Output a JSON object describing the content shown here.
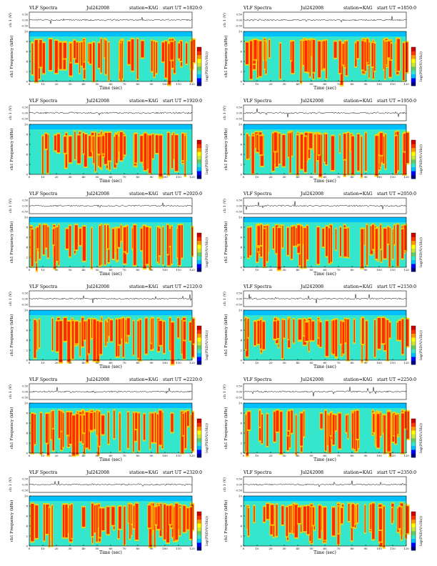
{
  "chart_data": [
    {
      "type": "heatmap",
      "title": "VLF Spectra",
      "date": "Jul242008",
      "station": "station=KAG",
      "start": "start  UT  =1820:0",
      "ylabel_wave": "ch 1 (V)",
      "ylabel_spec": "ch1\nFrequency (kHz)",
      "xlabel": "Time (sec)",
      "colorbar_label": "log(PSD(V/√Hz))",
      "xlim": [
        0,
        120
      ],
      "ylim": [
        0,
        10
      ],
      "wave_ylim": [
        -0.5,
        0.5
      ]
    },
    {
      "type": "heatmap",
      "title": "VLF Spectra",
      "date": "Jul242008",
      "station": "station=KAG",
      "start": "start  UT  =1850:0",
      "ylabel_wave": "ch 1 (V)",
      "ylabel_spec": "ch1\nFrequency (kHz)",
      "xlabel": "Time (sec)",
      "colorbar_label": "log(PSD(V/√Hz))",
      "xlim": [
        0,
        120
      ],
      "ylim": [
        0,
        10
      ],
      "wave_ylim": [
        -0.5,
        0.5
      ]
    },
    {
      "type": "heatmap",
      "title": "VLF Spectra",
      "date": "Jul242008",
      "station": "station=KAG",
      "start": "start  UT  =1920:0",
      "ylabel_wave": "ch 1 (V)",
      "ylabel_spec": "ch1\nFrequency (kHz)",
      "xlabel": "Time (sec)",
      "colorbar_label": "log(PSD(V/√Hz))",
      "xlim": [
        0,
        120
      ],
      "ylim": [
        0,
        10
      ],
      "wave_ylim": [
        -0.5,
        0.5
      ]
    },
    {
      "type": "heatmap",
      "title": "VLF Spectra",
      "date": "Jul242008",
      "station": "station=KAG",
      "start": "start  UT  =1950:0",
      "ylabel_wave": "ch 1 (V)",
      "ylabel_spec": "ch1\nFrequency (kHz)",
      "xlabel": "Time (sec)",
      "colorbar_label": "log(PSD(V/√Hz))",
      "xlim": [
        0,
        120
      ],
      "ylim": [
        0,
        10
      ],
      "wave_ylim": [
        -0.5,
        0.5
      ]
    },
    {
      "type": "heatmap",
      "title": "VLF Spectra",
      "date": "Jul242008",
      "station": "station=KAG",
      "start": "start  UT  =2020:0",
      "ylabel_wave": "ch 1 (V)",
      "ylabel_spec": "ch1\nFrequency (kHz)",
      "xlabel": "Time (sec)",
      "colorbar_label": "log(PSD(V/√Hz))",
      "xlim": [
        0,
        120
      ],
      "ylim": [
        0,
        10
      ],
      "wave_ylim": [
        -0.5,
        0.5
      ]
    },
    {
      "type": "heatmap",
      "title": "VLF Spectra",
      "date": "Jul242008",
      "station": "station=KAG",
      "start": "start  UT  =2050:0",
      "ylabel_wave": "ch 1 (V)",
      "ylabel_spec": "ch1\nFrequency (kHz)",
      "xlabel": "Time (sec)",
      "colorbar_label": "log(PSD(V/√Hz))",
      "xlim": [
        0,
        120
      ],
      "ylim": [
        0,
        10
      ],
      "wave_ylim": [
        -0.5,
        0.5
      ]
    },
    {
      "type": "heatmap",
      "title": "VLF Spectra",
      "date": "Jul242008",
      "station": "station=KAG",
      "start": "start  UT  =2120:0",
      "ylabel_wave": "ch 1 (V)",
      "ylabel_spec": "ch1\nFrequency (kHz)",
      "xlabel": "Time (sec)",
      "colorbar_label": "log(PSD(V/√Hz))",
      "xlim": [
        0,
        120
      ],
      "ylim": [
        0,
        10
      ],
      "wave_ylim": [
        -0.5,
        0.5
      ]
    },
    {
      "type": "heatmap",
      "title": "VLF Spectra",
      "date": "Jul242008",
      "station": "station=KAG",
      "start": "start  UT  =2150:0",
      "ylabel_wave": "ch 1 (V)",
      "ylabel_spec": "ch1\nFrequency (kHz)",
      "xlabel": "Time (sec)",
      "colorbar_label": "log(PSD(V/√Hz))",
      "xlim": [
        0,
        120
      ],
      "ylim": [
        0,
        10
      ],
      "wave_ylim": [
        -0.5,
        0.5
      ]
    },
    {
      "type": "heatmap",
      "title": "VLF Spectra",
      "date": "Jul242008",
      "station": "station=KAG",
      "start": "start  UT  =2220:0",
      "ylabel_wave": "ch 1 (V)",
      "ylabel_spec": "ch1\nFrequency (kHz)",
      "xlabel": "Time (sec)",
      "colorbar_label": "log(PSD(V/√Hz))",
      "xlim": [
        0,
        120
      ],
      "ylim": [
        0,
        10
      ],
      "wave_ylim": [
        -0.5,
        0.5
      ]
    },
    {
      "type": "heatmap",
      "title": "VLF Spectra",
      "date": "Jul242008",
      "station": "station=KAG",
      "start": "start  UT  =2250:0",
      "ylabel_wave": "ch 1 (V)",
      "ylabel_spec": "ch1\nFrequency (kHz)",
      "xlabel": "Time (sec)",
      "colorbar_label": "log(PSD(V/√Hz))",
      "xlim": [
        0,
        120
      ],
      "ylim": [
        0,
        10
      ],
      "wave_ylim": [
        -0.5,
        0.5
      ]
    },
    {
      "type": "heatmap",
      "title": "VLF Spectra",
      "date": "Jul242008",
      "station": "station=KAG",
      "start": "start  UT  =2320:0",
      "ylabel_wave": "ch 1 (V)",
      "ylabel_spec": "ch1\nFrequency (kHz)",
      "xlabel": "Time (sec)",
      "colorbar_label": "log(PSD(V/√Hz))",
      "xlim": [
        0,
        120
      ],
      "ylim": [
        0,
        10
      ],
      "wave_ylim": [
        -0.5,
        0.5
      ]
    },
    {
      "type": "heatmap",
      "title": "VLF Spectra",
      "date": "Jul242008",
      "station": "station=KAG",
      "start": "start  UT  =2350:0",
      "ylabel_wave": "ch 1 (V)",
      "ylabel_spec": "ch1\nFrequency (kHz)",
      "xlabel": "Time (sec)",
      "colorbar_label": "log(PSD(V/√Hz))",
      "xlim": [
        0,
        120
      ],
      "ylim": [
        0,
        10
      ],
      "wave_ylim": [
        -0.5,
        0.5
      ]
    }
  ],
  "x_ticks": [
    0,
    10,
    20,
    30,
    40,
    50,
    60,
    70,
    80,
    90,
    100,
    110,
    120
  ],
  "y_ticks": [
    0,
    2,
    4,
    6,
    8,
    10
  ],
  "wave_ticks": [
    "0.50",
    "0.00",
    "-0.50"
  ],
  "colormap": [
    "#00007f",
    "#0000ff",
    "#00bfff",
    "#33e6cc",
    "#66cc66",
    "#cce633",
    "#ffff00",
    "#ff9900",
    "#ff3300",
    "#cc0000"
  ],
  "colors": {
    "background_band": "#33e6cc",
    "upper_band": "#00bfff",
    "burst": "#ff2a00",
    "burst_edge": "#ffd200"
  }
}
